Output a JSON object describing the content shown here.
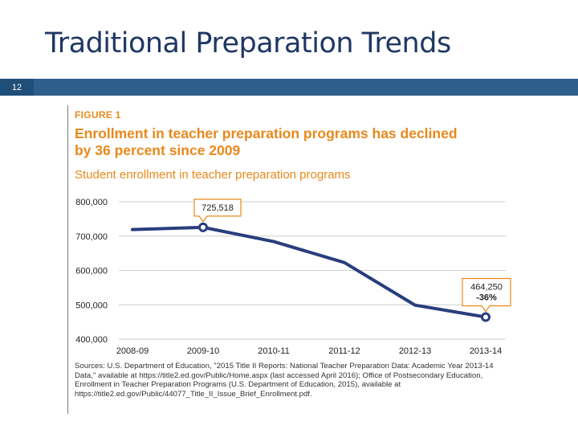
{
  "slide": {
    "title": "Traditional Preparation Trends",
    "number": "12"
  },
  "figure": {
    "label": "FIGURE 1",
    "sources": "Sources: U.S. Department of Education, \"2015 Title II Reports: National Teacher Preparation Data: Academic Year 2013-14 Data,\" available at https://title2.ed.gov/Public/Home.aspx (last accessed April 2016); Office of Postsecondary Education, Enrollment in Teacher Preparation Programs (U.S. Department of Education, 2015), available at https://title2.ed.gov/Public/44077_Title_II_Issue_Brief_Enrollment.pdf."
  },
  "colors": {
    "slide_title": "#1f3864",
    "bar": "#2e5e8c",
    "number_box": "#1f4e79",
    "figure_accent": "#e8891c",
    "line": "#283e7d",
    "grid": "#cfcfcf"
  },
  "chart_data": {
    "type": "line",
    "title": "Enrollment in teacher preparation programs has declined by 36 percent since 2009",
    "subtitle": "Student enrollment in teacher preparation programs",
    "xlabel": "",
    "ylabel": "",
    "categories": [
      "2008-09",
      "2009-10",
      "2010-11",
      "2011-12",
      "2012-13",
      "2013-14"
    ],
    "series": [
      {
        "values": [
          719000,
          725518,
          684000,
          623000,
          499000,
          464250
        ]
      }
    ],
    "ylim": [
      400000,
      800000
    ],
    "yticks": [
      400000,
      500000,
      600000,
      700000,
      800000
    ],
    "ytick_labels": [
      "400,000",
      "500,000",
      "600,000",
      "700,000",
      "800,000"
    ],
    "grid": true,
    "markers": [
      1,
      5
    ],
    "annotations": [
      {
        "index": 1,
        "lines": [
          "725,518"
        ]
      },
      {
        "index": 5,
        "lines": [
          "464,250",
          "-36%"
        ]
      }
    ]
  }
}
